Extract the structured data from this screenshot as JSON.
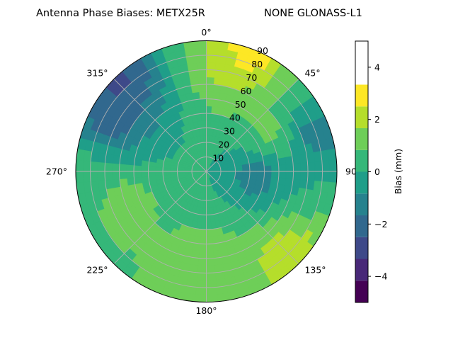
{
  "chart_data": {
    "type": "heatmap",
    "projection": "polar",
    "title_left": "Antenna Phase Biases: METX25R",
    "title_right": "NONE GLONASS-L1",
    "angular_ticks": [
      "0°",
      "45°",
      "90°",
      "135°",
      "180°",
      "225°",
      "270°",
      "315°"
    ],
    "radial_ticks": [
      "10",
      "20",
      "30",
      "40",
      "50",
      "60",
      "70",
      "80",
      "90"
    ],
    "rlim": [
      0,
      90
    ],
    "theta_zero": "top",
    "theta_direction": "clockwise",
    "grid": true,
    "colorbar": {
      "label": "Bias (mm)",
      "ticks": [
        "−4",
        "−2",
        "0",
        "2",
        "4"
      ],
      "tick_values": [
        -4,
        -2,
        0,
        2,
        4
      ],
      "range": [
        -5,
        5
      ],
      "levels": [
        -5,
        -4.167,
        -3.333,
        -2.5,
        -1.667,
        -0.833,
        0,
        0.833,
        1.667,
        2.5,
        3.333,
        4.167,
        5
      ],
      "colors": [
        "#440154",
        "#482878",
        "#3e4989",
        "#31688e",
        "#26828e",
        "#1f9e89",
        "#35b779",
        "#6ece58",
        "#b5de2b",
        "#fde725"
      ]
    },
    "regions": [
      {
        "az": 10,
        "el_range": [
          60,
          90
        ],
        "bias": 2.0
      },
      {
        "az": 20,
        "el_range": [
          80,
          90
        ],
        "bias": 3.5
      },
      {
        "az": 60,
        "el_range": [
          30,
          70
        ],
        "bias": 1.3
      },
      {
        "az": 70,
        "el_range": [
          70,
          90
        ],
        "bias": -1.5
      },
      {
        "az": 95,
        "el_range": [
          20,
          50
        ],
        "bias": -1.8
      },
      {
        "az": 135,
        "el_range": [
          70,
          90
        ],
        "bias": 2.5
      },
      {
        "az": 180,
        "el_range": [
          50,
          80
        ],
        "bias": 1.5
      },
      {
        "az": 250,
        "el_range": [
          40,
          80
        ],
        "bias": 1.5
      },
      {
        "az": 300,
        "el_range": [
          60,
          90
        ],
        "bias": -2.5
      },
      {
        "az": 315,
        "el_range": [
          80,
          90
        ],
        "bias": -3.0
      },
      {
        "az": 270,
        "el_range": [
          80,
          90
        ],
        "bias": 0.5
      }
    ]
  }
}
